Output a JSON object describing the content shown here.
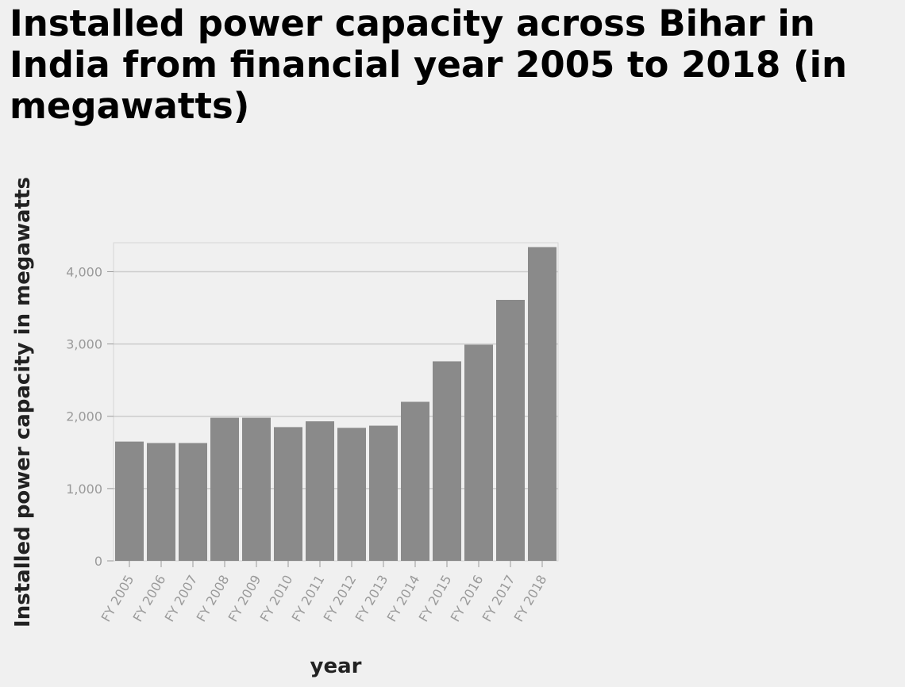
{
  "chart_data": {
    "type": "bar",
    "title": "Installed power capacity across Bihar in India from financial year 2005 to 2018 (in megawatts)",
    "xlabel": "year",
    "ylabel": "Installed power capacity in megawatts",
    "categories": [
      "FY 2005",
      "FY 2006",
      "FY 2007",
      "FY 2008",
      "FY 2009",
      "FY 2010",
      "FY 2011",
      "FY 2012",
      "FY 2013",
      "FY 2014",
      "FY 2015",
      "FY 2016",
      "FY 2017",
      "FY 2018"
    ],
    "values": [
      1650,
      1630,
      1630,
      1980,
      1980,
      1850,
      1930,
      1840,
      1870,
      2200,
      2760,
      2990,
      3610,
      4340
    ],
    "ylim": [
      0,
      4400
    ],
    "yticks": [
      0,
      1000,
      2000,
      3000,
      4000
    ],
    "ytick_labels": [
      "0",
      "1,000",
      "2,000",
      "3,000",
      "4,000"
    ],
    "grid": true,
    "bar_color": "#8a8a8a"
  }
}
